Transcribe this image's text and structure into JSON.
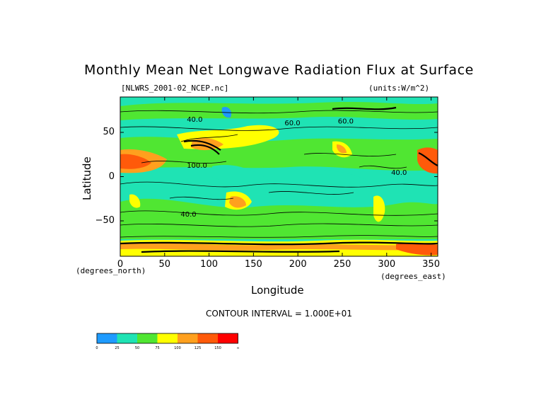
{
  "chart_data": {
    "type": "heatmap",
    "title": "Monthly Mean Net Longwave Radiation Flux at Surface",
    "source_label": "[NLWRS_2001-02_NCEP.nc]",
    "units_label": "(units:W/m^2)",
    "xlabel": "Longitude",
    "ylabel": "Latitude",
    "x_unit_label": "(degrees_east)",
    "y_unit_label": "(degrees_north)",
    "xlim": [
      0,
      357.5
    ],
    "ylim": [
      -90,
      90
    ],
    "x_ticks": [
      "0",
      "50",
      "100",
      "150",
      "200",
      "250",
      "300",
      "350"
    ],
    "x_tick_values": [
      0,
      50,
      100,
      150,
      200,
      250,
      300,
      350
    ],
    "y_ticks": [
      "50",
      "0",
      "−50"
    ],
    "y_tick_values": [
      50,
      0,
      -50
    ],
    "contour_interval": "CONTOUR INTERVAL = 1.000E+01",
    "contour_labels": [
      {
        "text": "40.0",
        "lon": 68,
        "lat": -45
      },
      {
        "text": "60.0",
        "lon": 185,
        "lat": 58
      },
      {
        "text": "40.0",
        "lon": 75,
        "lat": 62
      },
      {
        "text": "60.0",
        "lon": 245,
        "lat": 60
      },
      {
        "text": "100.0",
        "lon": 75,
        "lat": 10
      },
      {
        "text": "40.0",
        "lon": 305,
        "lat": 2
      }
    ],
    "colorbar": {
      "labels": [
        "0",
        "25",
        "50",
        "75",
        "100",
        "125",
        "150",
        "∞"
      ],
      "colors": [
        "#1e9bff",
        "#1fe3b4",
        "#50e632",
        "#ffff00",
        "#ffa01e",
        "#ff5a0a",
        "#ff0000"
      ]
    }
  }
}
